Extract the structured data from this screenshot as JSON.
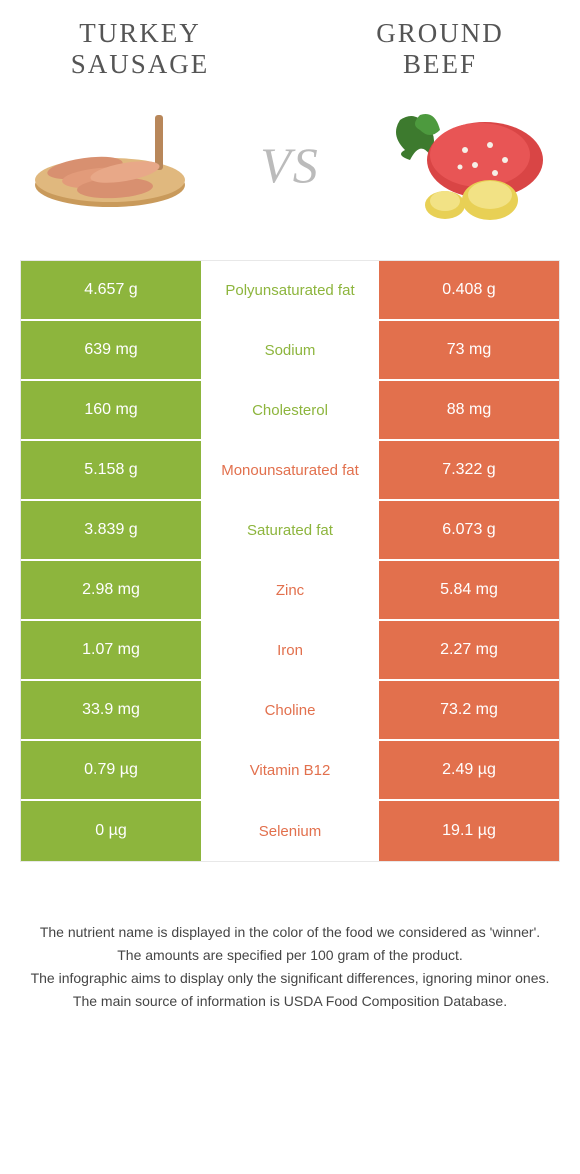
{
  "colors": {
    "left": "#8db53d",
    "right": "#e2704d",
    "mid_bg": "#ffffff",
    "text_white": "#ffffff"
  },
  "header": {
    "left_title": "TURKEY SAUSAGE",
    "right_title": "GROUND BEEF",
    "vs": "VS"
  },
  "rows": [
    {
      "left": "4.657 g",
      "label": "Polyunsaturated fat",
      "right": "0.408 g",
      "winner": "left"
    },
    {
      "left": "639 mg",
      "label": "Sodium",
      "right": "73 mg",
      "winner": "left"
    },
    {
      "left": "160 mg",
      "label": "Cholesterol",
      "right": "88 mg",
      "winner": "left"
    },
    {
      "left": "5.158 g",
      "label": "Monounsaturated fat",
      "right": "7.322 g",
      "winner": "right"
    },
    {
      "left": "3.839 g",
      "label": "Saturated fat",
      "right": "6.073 g",
      "winner": "left"
    },
    {
      "left": "2.98 mg",
      "label": "Zinc",
      "right": "5.84 mg",
      "winner": "right"
    },
    {
      "left": "1.07 mg",
      "label": "Iron",
      "right": "2.27 mg",
      "winner": "right"
    },
    {
      "left": "33.9 mg",
      "label": "Choline",
      "right": "73.2 mg",
      "winner": "right"
    },
    {
      "left": "0.79 µg",
      "label": "Vitamin B12",
      "right": "2.49 µg",
      "winner": "right"
    },
    {
      "left": "0 µg",
      "label": "Selenium",
      "right": "19.1 µg",
      "winner": "right"
    }
  ],
  "footer": {
    "line1": "The nutrient name is displayed in the color of the food we considered as 'winner'.",
    "line2": "The amounts are specified per 100 gram of the product.",
    "line3": "The infographic aims to display only the significant differences, ignoring minor ones.",
    "line4": "The main source of information is USDA Food Composition Database."
  }
}
